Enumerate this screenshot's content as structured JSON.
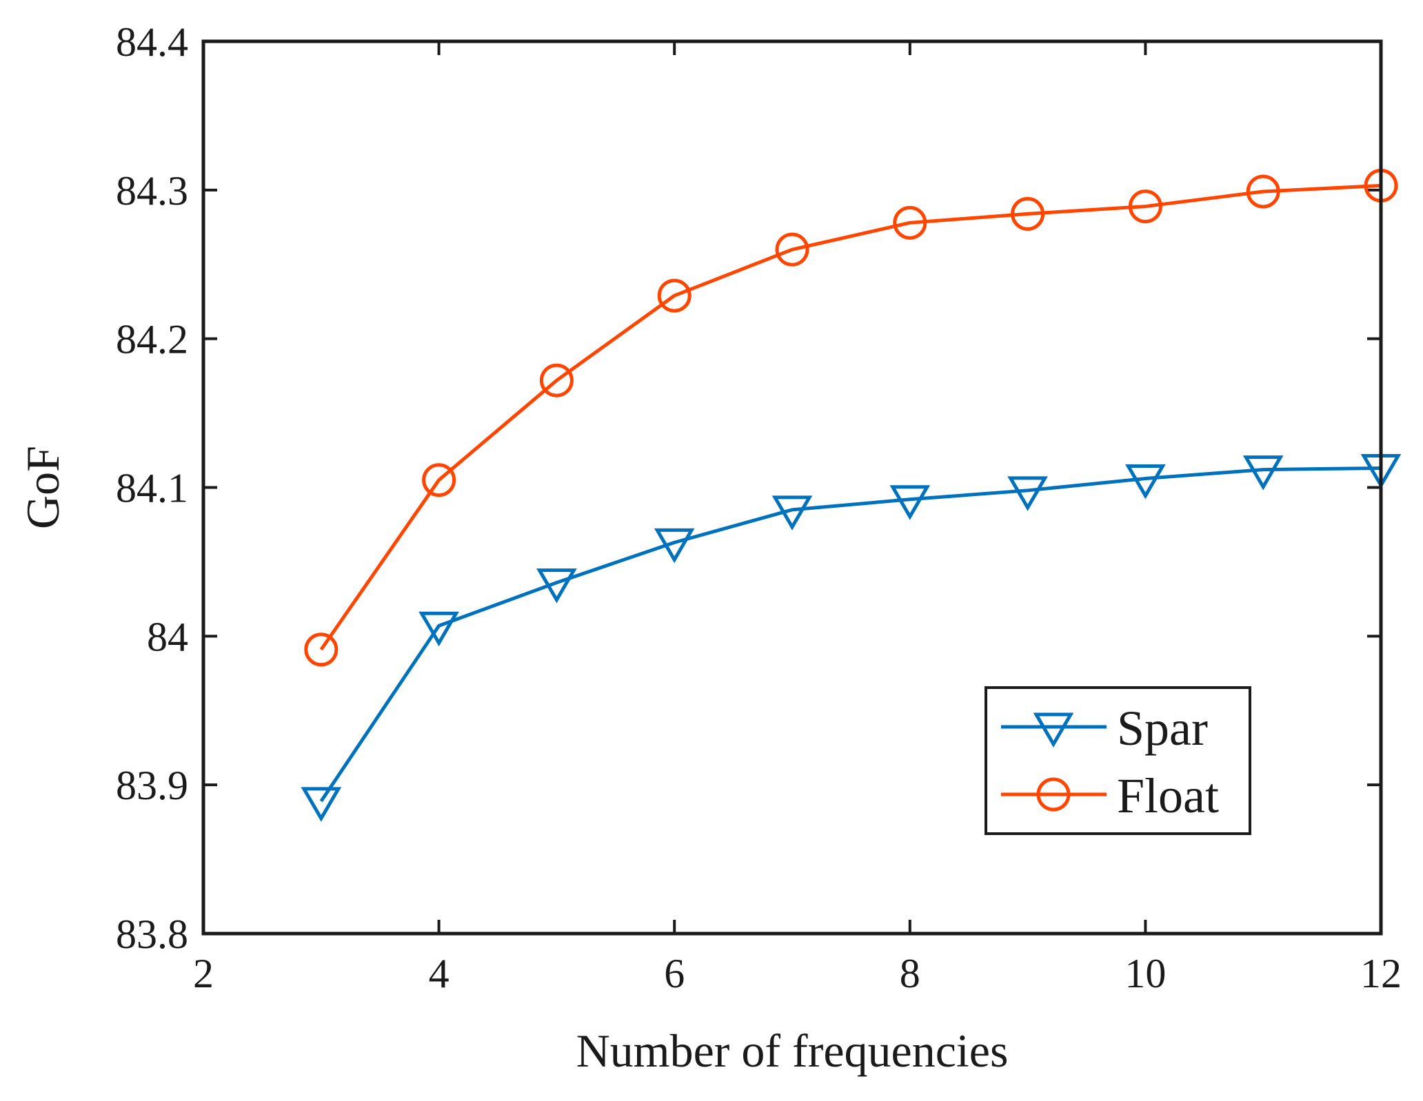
{
  "chart_data": {
    "type": "line",
    "title": "",
    "xlabel": "Number of frequencies",
    "ylabel": "GoF",
    "xlim": [
      2,
      12
    ],
    "ylim": [
      83.8,
      84.4
    ],
    "xticks": [
      2,
      4,
      6,
      8,
      10,
      12
    ],
    "xtick_labels": [
      "2",
      "4",
      "6",
      "8",
      "10",
      "12"
    ],
    "yticks": [
      83.8,
      83.9,
      84.0,
      84.1,
      84.2,
      84.3,
      84.4
    ],
    "ytick_labels": [
      "83.8",
      "83.9",
      "84",
      "84.1",
      "84.2",
      "84.3",
      "84.4"
    ],
    "grid": false,
    "legend_position": "lower-right",
    "x": [
      3,
      4,
      5,
      6,
      7,
      8,
      9,
      10,
      11,
      12
    ],
    "series": [
      {
        "name": "Spar",
        "color": "#0072BD",
        "marker": "triangle-down",
        "values": [
          83.889,
          84.007,
          84.036,
          84.063,
          84.085,
          84.092,
          84.098,
          84.106,
          84.112,
          84.113
        ]
      },
      {
        "name": "Float",
        "color": "#FF4500",
        "marker": "circle",
        "values": [
          83.991,
          84.105,
          84.172,
          84.229,
          84.26,
          84.278,
          84.284,
          84.289,
          84.299,
          84.303
        ]
      }
    ]
  }
}
